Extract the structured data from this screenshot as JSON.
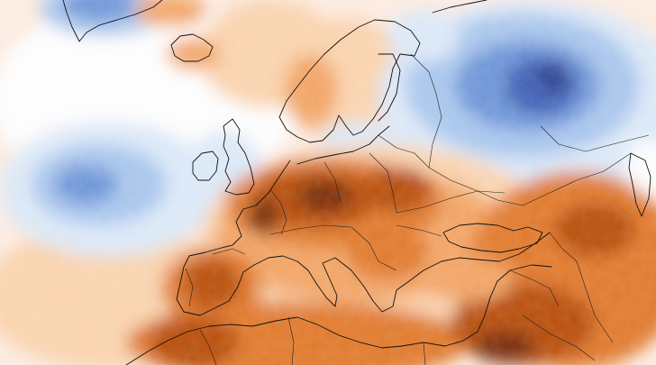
{
  "map": {
    "type": "temperature-anomaly",
    "colors": {
      "very_warm": "#7a2e08",
      "warm_strong": "#b8500e",
      "warm": "#e07a2e",
      "warm_mild": "#f2a566",
      "warm_light": "#f9d3ae",
      "neutral": "#fdfdfd",
      "cool_light": "#dbe8f7",
      "cool": "#a9c6ec",
      "cool_strong": "#6f96d8",
      "cold": "#4262b5",
      "very_cold": "#2a3f8e",
      "coastline": "#111111"
    }
  }
}
